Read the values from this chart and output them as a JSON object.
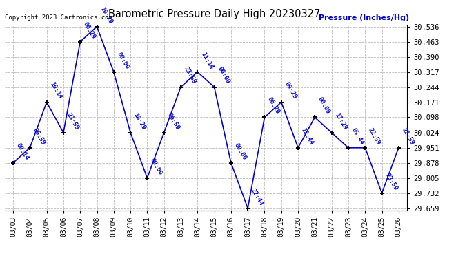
{
  "title": "Barometric Pressure Daily High 20230327",
  "copyright": "Copyright 2023 Cartronics.com",
  "ylabel": "Pressure (Inches/Hg)",
  "dates": [
    "03/03",
    "03/04",
    "03/05",
    "03/06",
    "03/07",
    "03/08",
    "03/09",
    "03/10",
    "03/11",
    "03/12",
    "03/13",
    "03/14",
    "03/15",
    "03/16",
    "03/17",
    "03/18",
    "03/19",
    "03/20",
    "03/21",
    "03/22",
    "03/23",
    "03/24",
    "03/25",
    "03/26"
  ],
  "values": [
    29.878,
    29.951,
    30.171,
    30.024,
    30.463,
    30.536,
    30.317,
    30.024,
    29.805,
    30.024,
    30.244,
    30.317,
    30.244,
    29.878,
    29.659,
    30.098,
    30.171,
    29.951,
    30.098,
    30.024,
    29.951,
    29.951,
    29.732,
    29.951
  ],
  "times": [
    "00:14",
    "06:59",
    "10:14",
    "23:59",
    "06:29",
    "10:29",
    "00:00",
    "18:29",
    "00:00",
    "06:59",
    "23:59",
    "11:14",
    "00:00",
    "00:00",
    "22:44",
    "06:29",
    "09:29",
    "12:44",
    "00:00",
    "17:29",
    "05:44",
    "22:59",
    "23:59",
    "22:59"
  ],
  "ylim_min": 29.649,
  "ylim_max": 30.546,
  "line_color": "#0000cc",
  "marker_color": "#000000",
  "label_color": "#0000cc",
  "title_color": "#000000",
  "copyright_color": "#000000",
  "ylabel_color": "#0000cc",
  "background_color": "#ffffff",
  "grid_color": "#bbbbbb",
  "yticks": [
    29.659,
    29.732,
    29.805,
    29.878,
    29.951,
    30.024,
    30.098,
    30.171,
    30.244,
    30.317,
    30.39,
    30.463,
    30.536
  ]
}
